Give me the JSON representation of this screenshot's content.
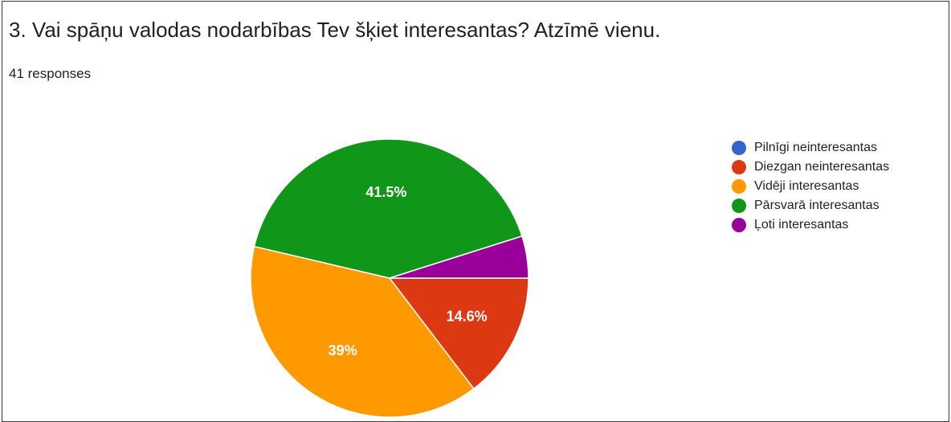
{
  "header": {
    "question_title": "3. Vai spāņu valodas nodarbības Tev šķiet interesantas?  Atzīmē vienu.",
    "response_count": "41 responses"
  },
  "chart_data": {
    "type": "pie",
    "title": "3. Vai spāņu valodas nodarbības Tev šķiet interesantas?  Atzīmē vienu.",
    "total_responses": 41,
    "legend_position": "right",
    "slices": [
      {
        "name": "Pilnīgi neinteresantas",
        "value": 0,
        "percent_label": "",
        "color": "#3366cc"
      },
      {
        "name": "Diezgan neinteresantas",
        "value": 6,
        "percent_label": "14.6%",
        "color": "#dc3912"
      },
      {
        "name": "Vidēji interesantas",
        "value": 16,
        "percent_label": "39%",
        "color": "#ff9900"
      },
      {
        "name": "Pārsvarā interesantas",
        "value": 17,
        "percent_label": "41.5%",
        "color": "#109618"
      },
      {
        "name": "Ļoti interesantas",
        "value": 2,
        "percent_label": "",
        "color": "#990099"
      }
    ]
  }
}
